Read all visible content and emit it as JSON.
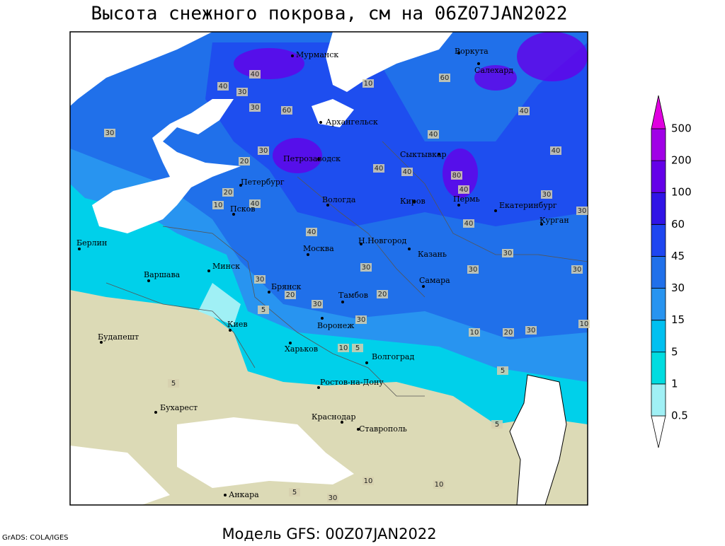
{
  "title": "Высота снежного покрова, см на 06Z07JAN2022",
  "footer": "Модель GFS: 00Z07JAN2022",
  "credit": "GrADS: COLA/IGES",
  "cities": [
    "Мурманск",
    "Воркута",
    "Салехард",
    "Архангельск",
    "Сыктывкар",
    "Петрозаводск",
    "Петербург",
    "Вологда",
    "Киров",
    "Пермь",
    "Екатеринбург",
    "Курган",
    "Псков",
    "Берлин",
    "Минск",
    "Москва",
    "Н.Новгород",
    "Казань",
    "Варшава",
    "Брянск",
    "Тамбов",
    "Самара",
    "Воронеж",
    "Киев",
    "Будапешт",
    "Харьков",
    "Волгоград",
    "Ростов-на-Дону",
    "Бухарест",
    "Краснодар",
    "Ставрополь",
    "Анкара"
  ],
  "contour_labels": [
    40,
    30,
    40,
    60,
    30,
    30,
    30,
    20,
    20,
    10,
    40,
    60,
    40,
    40,
    40,
    40,
    40,
    80,
    40,
    30,
    30,
    40,
    40,
    30,
    30,
    30,
    30,
    20,
    20,
    30,
    30,
    30,
    5,
    10,
    20,
    30,
    10,
    10,
    5,
    5,
    5,
    5,
    10,
    10,
    30,
    5,
    10
  ],
  "legend": {
    "levels": [
      0.5,
      1,
      5,
      15,
      30,
      45,
      60,
      100,
      200,
      500
    ],
    "colors": [
      "#ffffff",
      "#a0f0f5",
      "#00dce0",
      "#00c0f0",
      "#2894f0",
      "#2070ea",
      "#1e46f0",
      "#3014e6",
      "#6400e8",
      "#a000e6",
      "#e000e0"
    ]
  }
}
